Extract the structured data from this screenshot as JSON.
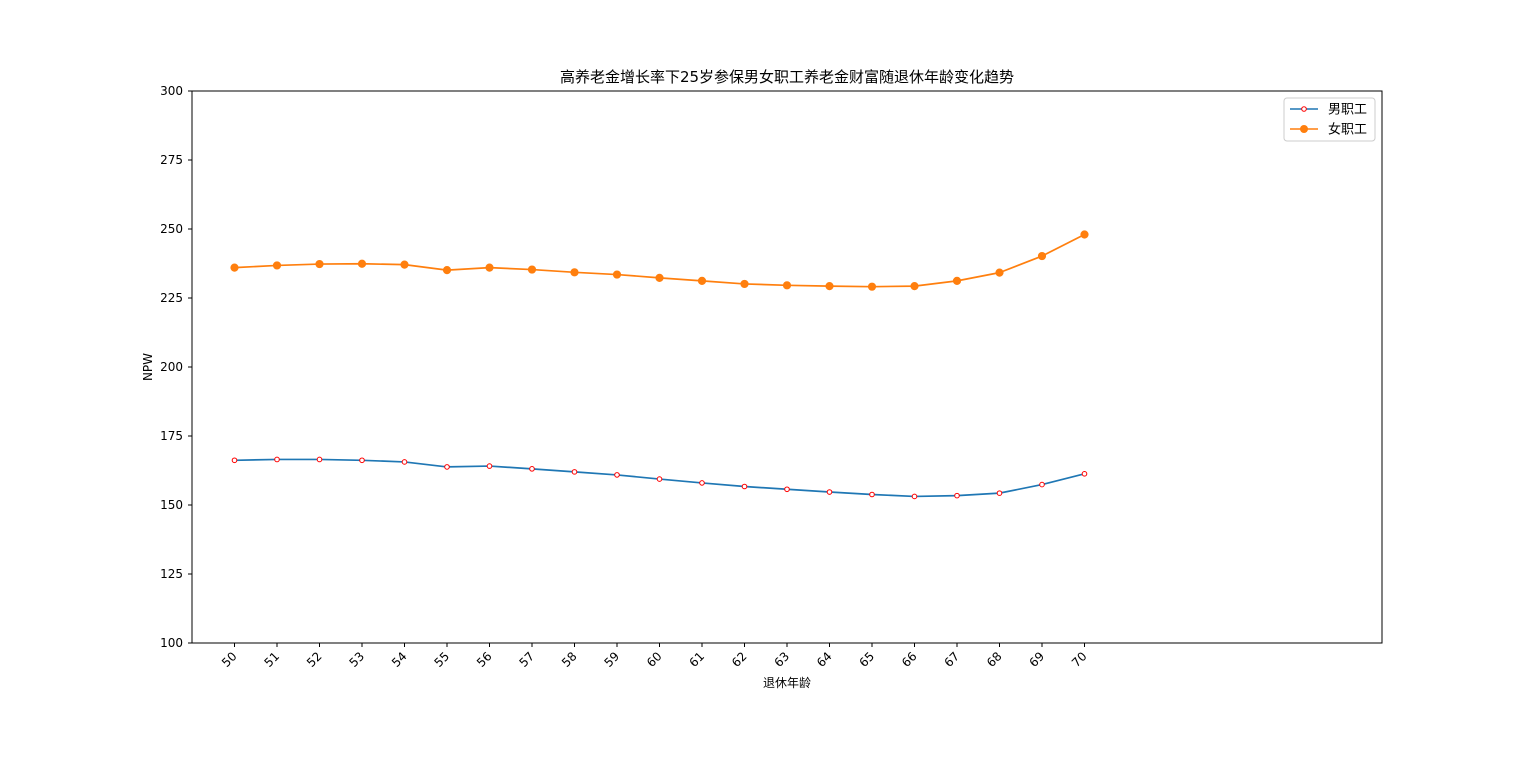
{
  "chart_data": {
    "type": "line",
    "title": "高养老金增长率下25岁参保男女职工养老金财富随退休年龄变化趋势",
    "xlabel": "退休年龄",
    "ylabel": "NPW",
    "x": [
      "50",
      "51",
      "52",
      "53",
      "54",
      "55",
      "56",
      "57",
      "58",
      "59",
      "60",
      "61",
      "62",
      "63",
      "64",
      "65",
      "66",
      "67",
      "68",
      "69",
      "70"
    ],
    "xlim": [
      49,
      77
    ],
    "ylim": [
      100,
      300
    ],
    "yticks": [
      100,
      125,
      150,
      175,
      200,
      225,
      250,
      275,
      300
    ],
    "grid": false,
    "legend_position": "top-right",
    "series": [
      {
        "name": "男职工",
        "color": "#1f77b4",
        "marker_edge": "#ff0000",
        "marker_face": "#ffffff",
        "values": [
          166.2,
          166.5,
          166.5,
          166.2,
          165.6,
          163.8,
          164.1,
          163.1,
          162.0,
          160.9,
          159.4,
          158.0,
          156.7,
          155.7,
          154.7,
          153.8,
          153.1,
          153.4,
          154.3,
          157.4,
          161.3
        ]
      },
      {
        "name": "女职工",
        "color": "#ff7f0e",
        "marker_edge": "#ff7f0e",
        "marker_face": "#ff7f0e",
        "values": [
          236.0,
          236.8,
          237.3,
          237.4,
          237.1,
          235.1,
          236.0,
          235.3,
          234.3,
          233.5,
          232.3,
          231.2,
          230.1,
          229.6,
          229.3,
          229.1,
          229.3,
          231.2,
          234.2,
          240.2,
          248.0
        ]
      }
    ]
  }
}
